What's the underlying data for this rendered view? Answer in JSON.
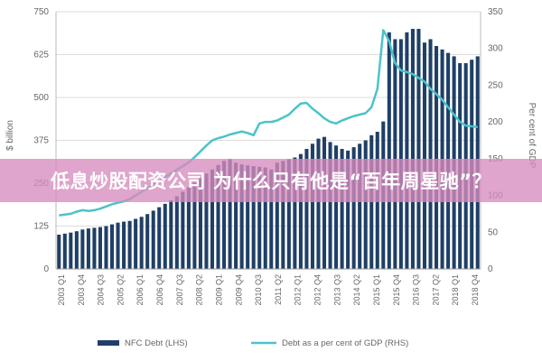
{
  "banner": {
    "text": "低息炒股配资公司 为什么只有他是“百年周星驰”？"
  },
  "chart_data": {
    "type": "bar",
    "left_axis": {
      "label": "$ billion",
      "min": 0,
      "max": 750,
      "ticks": [
        "0",
        "125",
        "250",
        "375",
        "500",
        "625",
        "750"
      ]
    },
    "right_axis": {
      "label": "Per cent of GDP",
      "min": 0,
      "max": 350,
      "ticks": [
        "0",
        "50",
        "100",
        "150",
        "200",
        "250",
        "300",
        "350"
      ]
    },
    "x_tick_labels": [
      "2003 Q1",
      "2003 Q4",
      "2004 Q3",
      "2005 Q2",
      "2006 Q1",
      "2006 Q4",
      "2007 Q3",
      "2008 Q2",
      "2009 Q1",
      "2009 Q4",
      "2010 Q3",
      "2011 Q2",
      "2012 Q1",
      "2012 Q4",
      "2013 Q3",
      "2014 Q2",
      "2015 Q1",
      "2015 Q4",
      "2016 Q3",
      "2017 Q2",
      "2018 Q1",
      "2018 Q4"
    ],
    "series": [
      {
        "name": "NFC Debt (LHS)",
        "type": "bar",
        "color": "#1f3f66",
        "values": [
          100,
          103,
          106,
          110,
          115,
          118,
          120,
          122,
          125,
          130,
          135,
          138,
          140,
          146,
          152,
          160,
          170,
          180,
          190,
          200,
          212,
          225,
          238,
          252,
          265,
          278,
          290,
          303,
          315,
          320,
          310,
          305,
          302,
          300,
          298,
          296,
          290,
          310,
          315,
          320,
          325,
          335,
          350,
          365,
          380,
          385,
          370,
          360,
          350,
          345,
          355,
          365,
          375,
          390,
          400,
          430,
          690,
          670,
          670,
          690,
          700,
          700,
          660,
          670,
          650,
          640,
          630,
          620,
          600,
          600,
          610,
          620
        ]
      },
      {
        "name": "Debt as a per cent of GDP (RHS)",
        "type": "line",
        "color": "#4cc3c9",
        "values": [
          73,
          74,
          75,
          78,
          80,
          79,
          80,
          82,
          85,
          88,
          90,
          92,
          95,
          100,
          105,
          110,
          115,
          120,
          125,
          130,
          135,
          140,
          145,
          152,
          160,
          168,
          175,
          178,
          180,
          183,
          185,
          187,
          185,
          182,
          198,
          200,
          200,
          202,
          206,
          210,
          218,
          225,
          226,
          218,
          212,
          205,
          200,
          198,
          202,
          205,
          208,
          210,
          212,
          220,
          245,
          325,
          310,
          280,
          270,
          268,
          265,
          260,
          255,
          245,
          238,
          230,
          220,
          210,
          200,
          195,
          194,
          193
        ]
      }
    ],
    "legend": {
      "placement": "bottom"
    }
  }
}
